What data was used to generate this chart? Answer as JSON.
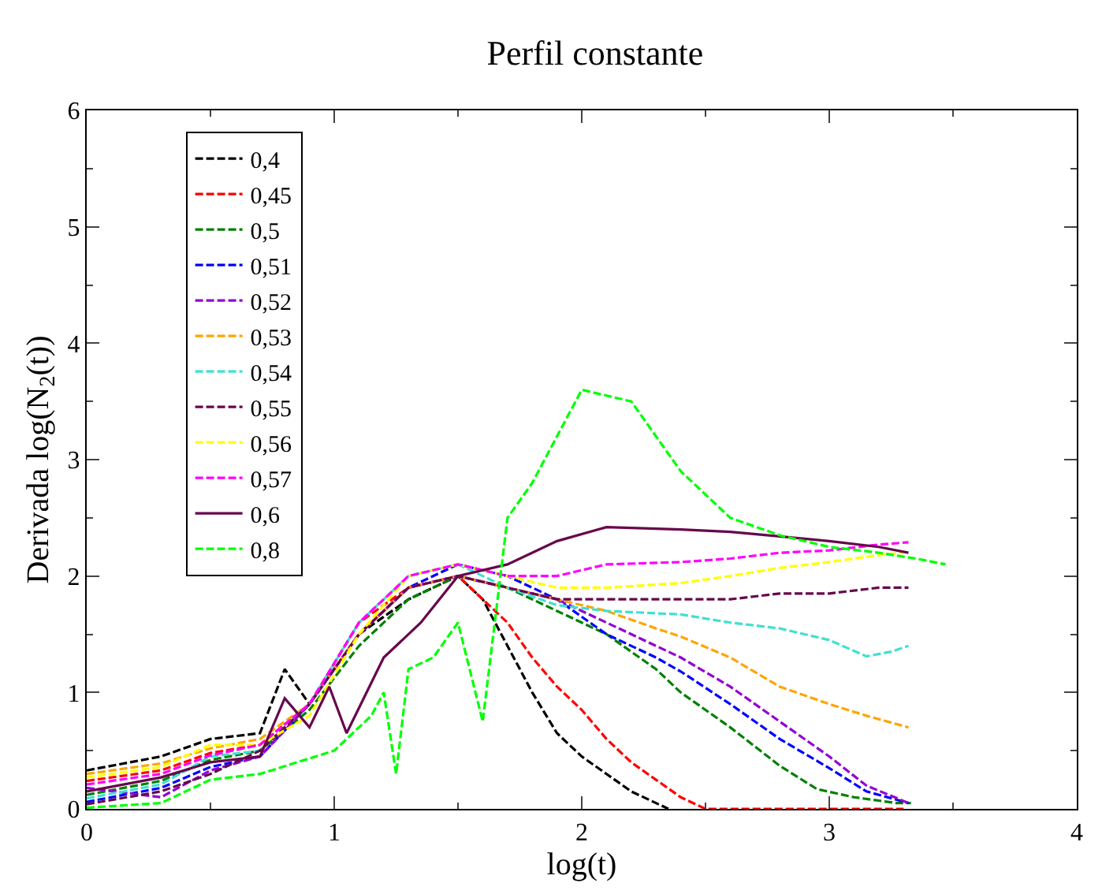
{
  "chart_data": {
    "type": "line",
    "title": "Perfil constante",
    "xlabel": "log(t)",
    "ylabel": "Derivada log(N$_{2}$(t))",
    "xlim": [
      0,
      4
    ],
    "xticks": [
      0,
      1,
      2,
      3,
      4
    ],
    "ylim": [
      0,
      6
    ],
    "yticks": [
      0,
      1,
      2,
      3,
      4,
      5,
      6
    ],
    "legend": "top left",
    "marker": "none",
    "line_style": "dashed",
    "series": [
      {
        "name": "0,4",
        "color": "#000000",
        "x": [
          0,
          0.3,
          0.5,
          0.7,
          0.8,
          0.9,
          1.1,
          1.3,
          1.5,
          1.6,
          1.7,
          1.8,
          1.9,
          2.0,
          2.1,
          2.2,
          2.3,
          2.35
        ],
        "values": [
          0.33,
          0.45,
          0.6,
          0.65,
          1.2,
          0.9,
          1.5,
          1.8,
          2.0,
          1.8,
          1.4,
          1.0,
          0.65,
          0.45,
          0.3,
          0.15,
          0.05,
          0
        ]
      },
      {
        "name": "0,45",
        "color": "#ff0000",
        "x": [
          0,
          0.3,
          0.5,
          0.7,
          0.9,
          1.1,
          1.3,
          1.5,
          1.7,
          1.8,
          1.9,
          2.0,
          2.1,
          2.2,
          2.3,
          2.4,
          2.5,
          2.8,
          3.1,
          3.3
        ],
        "values": [
          0.24,
          0.33,
          0.48,
          0.55,
          0.9,
          1.6,
          1.9,
          2.0,
          1.6,
          1.3,
          1.05,
          0.85,
          0.6,
          0.4,
          0.25,
          0.1,
          0,
          0,
          0,
          0
        ]
      },
      {
        "name": "0,5",
        "color": "#008000",
        "x": [
          0,
          0.3,
          0.5,
          0.7,
          0.9,
          1.1,
          1.3,
          1.5,
          1.7,
          1.9,
          2.1,
          2.3,
          2.4,
          2.6,
          2.8,
          2.95,
          3.1,
          3.27,
          3.33
        ],
        "values": [
          0.12,
          0.24,
          0.42,
          0.5,
          0.85,
          1.4,
          1.8,
          2.0,
          1.9,
          1.7,
          1.5,
          1.2,
          1.0,
          0.7,
          0.37,
          0.17,
          0.1,
          0.05,
          0.05
        ]
      },
      {
        "name": "0,51",
        "color": "#0000ff",
        "x": [
          0,
          0.3,
          0.5,
          0.7,
          0.9,
          1.1,
          1.3,
          1.5,
          1.7,
          1.9,
          2.1,
          2.3,
          2.4,
          2.6,
          2.8,
          3.0,
          3.15,
          3.32
        ],
        "values": [
          0.06,
          0.18,
          0.36,
          0.45,
          0.9,
          1.5,
          1.9,
          2.1,
          2.0,
          1.8,
          1.5,
          1.3,
          1.18,
          0.9,
          0.6,
          0.35,
          0.15,
          0.05
        ]
      },
      {
        "name": "0,52",
        "color": "#9400d3",
        "x": [
          0,
          0.3,
          0.5,
          0.7,
          0.9,
          1.1,
          1.3,
          1.5,
          1.7,
          1.9,
          2.1,
          2.3,
          2.4,
          2.6,
          2.8,
          3.0,
          3.15,
          3.32
        ],
        "values": [
          0.18,
          0.1,
          0.33,
          0.45,
          0.9,
          1.5,
          1.9,
          2.0,
          1.9,
          1.8,
          1.6,
          1.4,
          1.3,
          1.05,
          0.75,
          0.45,
          0.2,
          0.05
        ]
      },
      {
        "name": "0,53",
        "color": "#ffa500",
        "x": [
          0,
          0.3,
          0.5,
          0.7,
          0.9,
          1.1,
          1.3,
          1.5,
          1.7,
          1.9,
          2.1,
          2.3,
          2.4,
          2.6,
          2.8,
          3.0,
          3.15,
          3.32
        ],
        "values": [
          0.3,
          0.39,
          0.52,
          0.6,
          0.9,
          1.5,
          1.9,
          2.0,
          1.9,
          1.8,
          1.7,
          1.55,
          1.48,
          1.3,
          1.05,
          0.9,
          0.8,
          0.7
        ]
      },
      {
        "name": "0,54",
        "color": "#40e0d0",
        "x": [
          0,
          0.3,
          0.5,
          0.7,
          0.9,
          1.1,
          1.3,
          1.5,
          1.7,
          1.9,
          2.1,
          2.4,
          2.6,
          2.8,
          3.0,
          3.15,
          3.25,
          3.32
        ],
        "values": [
          0.09,
          0.21,
          0.45,
          0.5,
          0.9,
          1.6,
          2.0,
          2.1,
          1.9,
          1.75,
          1.7,
          1.67,
          1.6,
          1.55,
          1.45,
          1.31,
          1.35,
          1.4
        ]
      },
      {
        "name": "0,55",
        "color": "#67064b",
        "x": [
          0,
          0.3,
          0.5,
          0.7,
          0.9,
          1.1,
          1.3,
          1.5,
          1.7,
          1.9,
          2.1,
          2.4,
          2.6,
          2.8,
          3.0,
          3.2,
          3.32
        ],
        "values": [
          0.04,
          0.15,
          0.3,
          0.5,
          0.9,
          1.5,
          1.9,
          2.0,
          1.9,
          1.8,
          1.8,
          1.8,
          1.8,
          1.85,
          1.85,
          1.9,
          1.9
        ]
      },
      {
        "name": "0,56",
        "color": "#ffff00",
        "x": [
          0,
          0.3,
          0.5,
          0.7,
          0.9,
          1.1,
          1.3,
          1.5,
          1.7,
          1.9,
          2.1,
          2.4,
          2.6,
          2.8,
          3.0,
          3.2,
          3.3
        ],
        "values": [
          0.27,
          0.36,
          0.55,
          0.55,
          0.8,
          1.5,
          2.0,
          2.1,
          2.0,
          1.9,
          1.9,
          1.94,
          2.0,
          2.07,
          2.12,
          2.18,
          2.2
        ]
      },
      {
        "name": "0,57",
        "color": "#ff00ff",
        "x": [
          0,
          0.3,
          0.5,
          0.7,
          0.9,
          1.1,
          1.3,
          1.5,
          1.7,
          1.9,
          2.1,
          2.4,
          2.6,
          2.8,
          3.0,
          3.2,
          3.32
        ],
        "values": [
          0.21,
          0.3,
          0.46,
          0.55,
          0.9,
          1.6,
          2.0,
          2.1,
          2.0,
          2.0,
          2.1,
          2.12,
          2.15,
          2.2,
          2.22,
          2.27,
          2.29
        ]
      },
      {
        "name": "0,6",
        "color": "#67064b",
        "line_style": "solid",
        "x": [
          0,
          0.3,
          0.5,
          0.7,
          0.8,
          0.9,
          0.98,
          1.05,
          1.2,
          1.35,
          1.5,
          1.7,
          1.9,
          2.1,
          2.4,
          2.6,
          2.8,
          3.0,
          3.2,
          3.32
        ],
        "values": [
          0.15,
          0.27,
          0.4,
          0.45,
          0.95,
          0.7,
          1.05,
          0.65,
          1.3,
          1.6,
          2.0,
          2.1,
          2.3,
          2.42,
          2.4,
          2.38,
          2.34,
          2.3,
          2.25,
          2.2
        ]
      },
      {
        "name": "0,8",
        "color": "#00ff00",
        "x": [
          0,
          0.3,
          0.5,
          0.7,
          1.0,
          1.15,
          1.2,
          1.25,
          1.3,
          1.4,
          1.5,
          1.6,
          1.7,
          1.8,
          1.9,
          2.0,
          2.1,
          2.2,
          2.3,
          2.4,
          2.5,
          2.6,
          2.8,
          3.0,
          3.2,
          3.35,
          3.47
        ],
        "values": [
          0.01,
          0.05,
          0.25,
          0.3,
          0.5,
          0.8,
          1.0,
          0.3,
          1.2,
          1.3,
          1.6,
          0.75,
          2.5,
          2.8,
          3.2,
          3.6,
          3.55,
          3.5,
          3.2,
          2.9,
          2.7,
          2.5,
          2.35,
          2.25,
          2.2,
          2.15,
          2.1
        ]
      }
    ]
  }
}
